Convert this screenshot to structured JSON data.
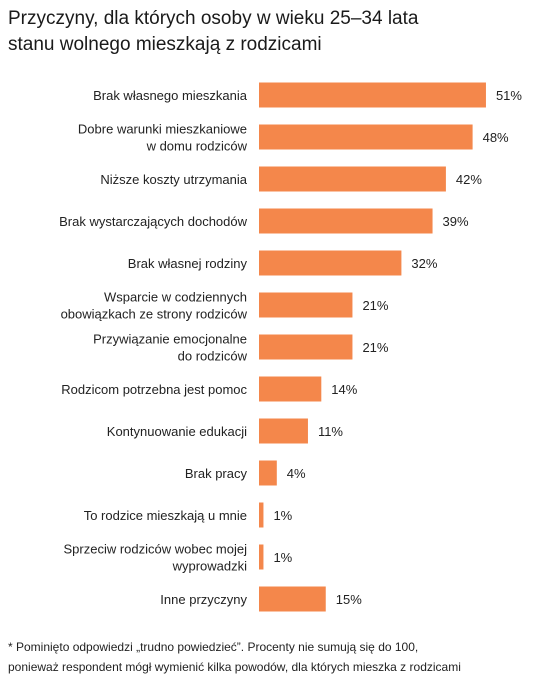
{
  "title_lines": [
    "Przyczyny, dla których osoby w wieku 25–34 lata",
    "stanu wolnego mieszkają z rodzicami"
  ],
  "footnote_lines": [
    "* Pominięto odpowiedzi „trudno powiedzieć”. Procenty nie sumują się do 100,",
    "ponieważ respondent mógł wymienić kilka powodów, dla których mieszka z rodzicami"
  ],
  "colors": {
    "bar": "#F4874B",
    "text": "#222222"
  },
  "chart_data": {
    "type": "bar",
    "orientation": "horizontal",
    "value_suffix": "%",
    "xlim": [
      0,
      55
    ],
    "grid": false,
    "legend": "none",
    "categories": [
      [
        "Brak własnego mieszkania"
      ],
      [
        "Dobre warunki mieszkaniowe",
        "w domu rodziców"
      ],
      [
        "Niższe koszty utrzymania"
      ],
      [
        "Brak wystarczających dochodów"
      ],
      [
        "Brak własnej rodziny"
      ],
      [
        "Wsparcie w codziennych",
        "obowiązkach ze strony rodziców"
      ],
      [
        "Przywiązanie emocjonalne",
        "do rodziców"
      ],
      [
        "Rodzicom potrzebna jest pomoc"
      ],
      [
        "Kontynuowanie edukacji"
      ],
      [
        "Brak pracy"
      ],
      [
        "To rodzice mieszkają u mnie"
      ],
      [
        "Sprzeciw rodziców wobec mojej",
        "wyprowadzki"
      ],
      [
        "Inne przyczyny"
      ]
    ],
    "values": [
      51,
      48,
      42,
      39,
      32,
      21,
      21,
      14,
      11,
      4,
      1,
      1,
      15
    ],
    "data_labels": [
      "51%",
      "48%",
      "42%",
      "39%",
      "32%",
      "21%",
      "21%",
      "14%",
      "11%",
      "4%",
      "1%",
      "1%",
      "15%"
    ]
  }
}
